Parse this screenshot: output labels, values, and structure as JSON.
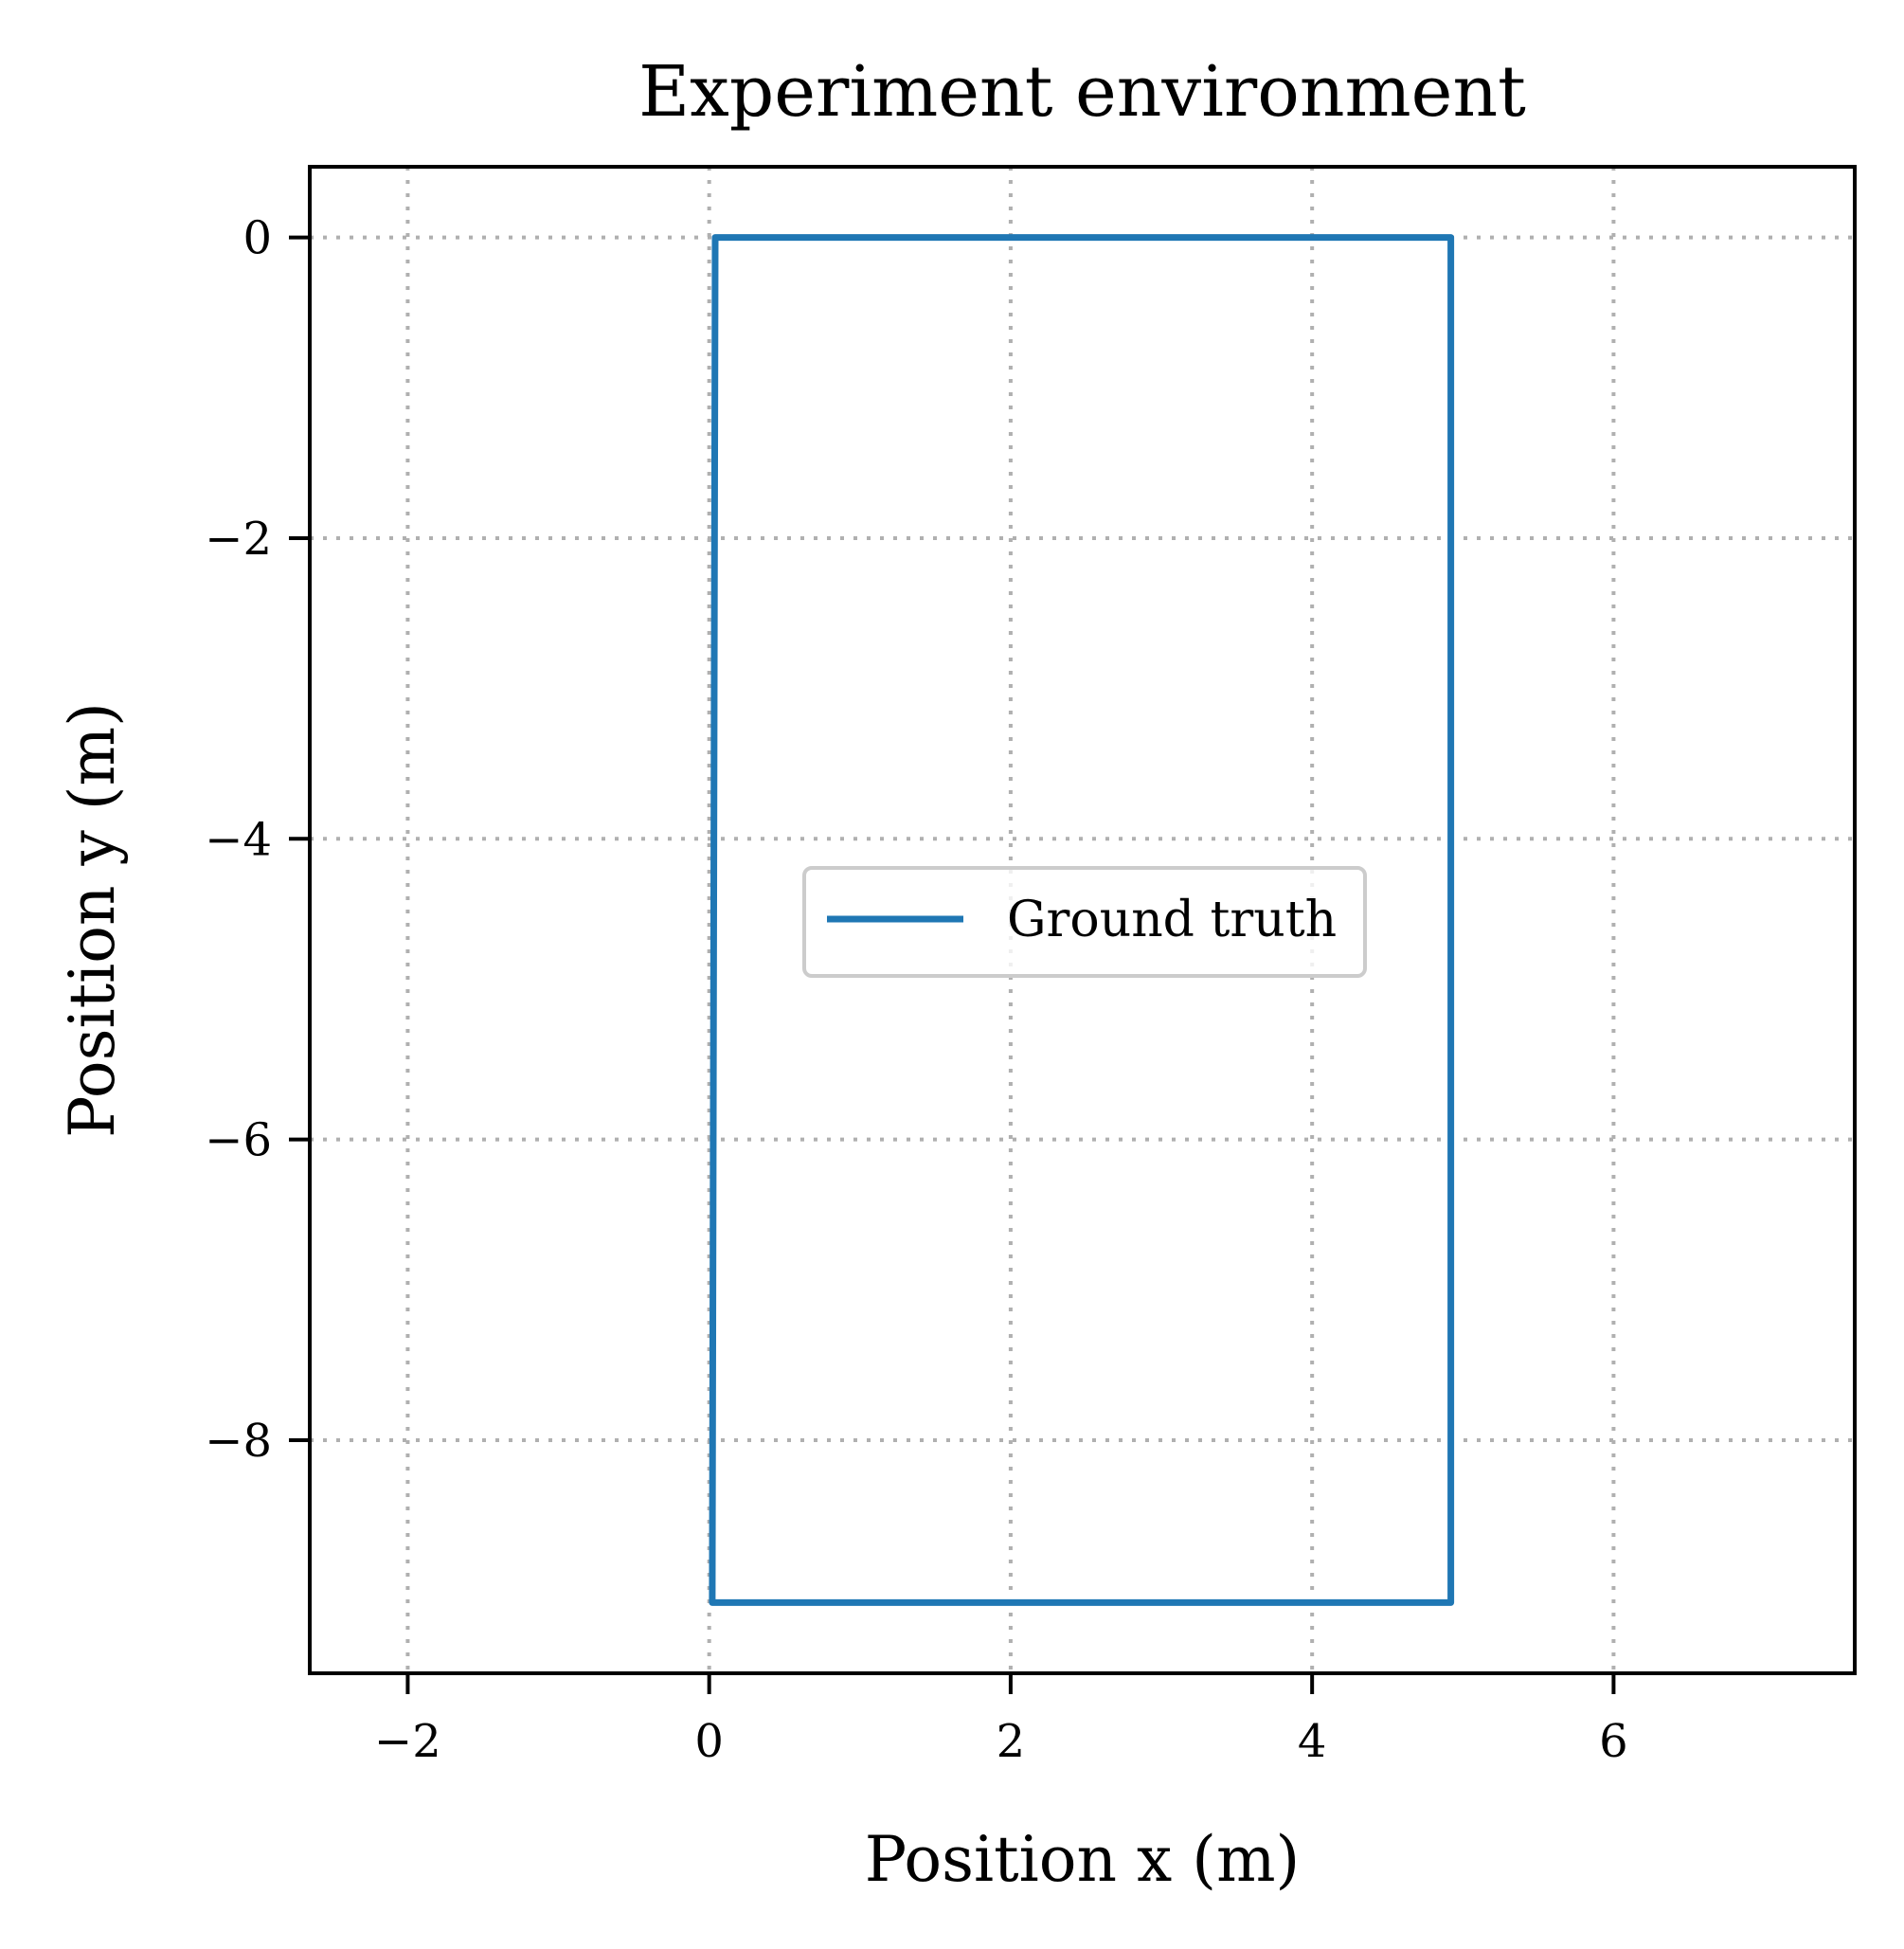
{
  "chart_data": {
    "type": "line",
    "title": "Experiment environment",
    "xlabel": "Position x (m)",
    "ylabel": "Position y (m)",
    "xlim": [
      -2.65,
      7.6
    ],
    "ylim": [
      -9.55,
      0.47
    ],
    "xticks": [
      -2,
      0,
      2,
      4,
      6
    ],
    "yticks": [
      0,
      -2,
      -4,
      -6,
      -8
    ],
    "xtick_labels": [
      "−2",
      "0",
      "2",
      "4",
      "6"
    ],
    "ytick_labels": [
      "0",
      "−2",
      "−4",
      "−6",
      "−8"
    ],
    "grid": true,
    "legend_position": "center",
    "series": [
      {
        "name": "Ground truth",
        "color": "#1f77b4",
        "x": [
          0.04,
          4.92,
          4.92,
          0.02,
          0.04
        ],
        "y": [
          0.0,
          0.0,
          -9.08,
          -9.08,
          0.0
        ]
      }
    ]
  }
}
